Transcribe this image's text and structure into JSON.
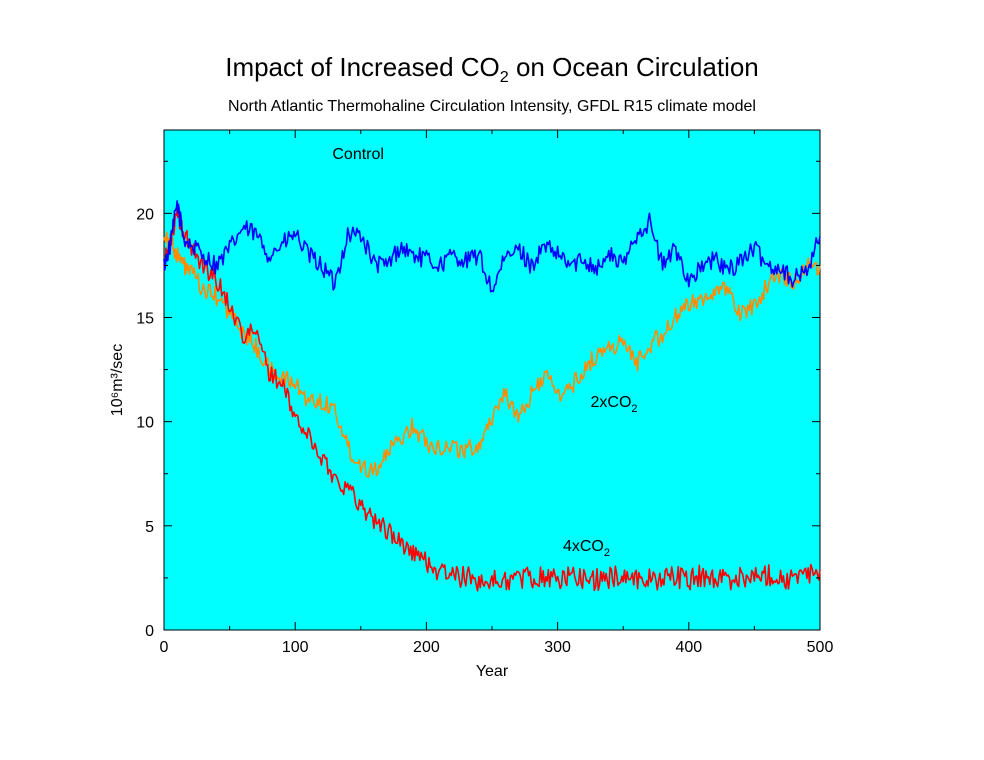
{
  "chart_data": {
    "type": "line",
    "title": {
      "main": "Impact of Increased CO",
      "sub": "2",
      "tail": " on Ocean Circulation"
    },
    "subtitle": "North Atlantic Thermohaline Circulation Intensity, GFDL R15 climate model",
    "xlabel": "Year",
    "ylabel": "10⁶m³/sec",
    "xlim": [
      0,
      500
    ],
    "ylim": [
      0,
      24
    ],
    "xticks": [
      0,
      100,
      200,
      300,
      400,
      500
    ],
    "yticks": [
      0,
      5,
      10,
      15,
      20
    ],
    "background": "#00ffff",
    "grid": false,
    "legend": "none (series labeled directly on plot)",
    "series": [
      {
        "name": "Control",
        "label_parts": [
          "Control",
          ""
        ],
        "color": "#0000ff",
        "x": [
          0,
          5,
          10,
          15,
          20,
          30,
          40,
          50,
          60,
          70,
          80,
          90,
          100,
          110,
          120,
          130,
          140,
          150,
          160,
          170,
          180,
          190,
          200,
          210,
          220,
          230,
          240,
          250,
          260,
          270,
          280,
          290,
          300,
          310,
          320,
          330,
          340,
          350,
          360,
          370,
          380,
          390,
          400,
          410,
          420,
          430,
          440,
          450,
          460,
          470,
          480,
          490,
          500
        ],
        "y": [
          17.5,
          18.5,
          20.5,
          18.8,
          18.5,
          18.0,
          17.5,
          18.3,
          19.3,
          19.0,
          18.0,
          18.5,
          19.0,
          18.0,
          17.5,
          16.6,
          19.0,
          19.0,
          17.6,
          17.5,
          18.4,
          18.0,
          17.8,
          17.5,
          18.0,
          17.7,
          18.0,
          16.3,
          17.8,
          18.3,
          17.5,
          18.4,
          18.0,
          17.5,
          17.8,
          17.4,
          18.0,
          17.5,
          19.0,
          19.6,
          17.5,
          18.3,
          16.8,
          17.4,
          17.8,
          17.2,
          17.8,
          18.3,
          17.5,
          17.4,
          16.8,
          17.3,
          18.9
        ]
      },
      {
        "name": "2xCO2",
        "label_parts": [
          "2xCO",
          "2"
        ],
        "color": "#ff8c00",
        "x": [
          0,
          5,
          10,
          15,
          20,
          30,
          40,
          50,
          60,
          70,
          80,
          90,
          100,
          110,
          120,
          130,
          140,
          150,
          160,
          170,
          180,
          190,
          200,
          210,
          220,
          230,
          240,
          250,
          260,
          270,
          280,
          290,
          300,
          310,
          320,
          330,
          340,
          350,
          360,
          370,
          380,
          390,
          400,
          410,
          420,
          430,
          440,
          450,
          460,
          470,
          480,
          490,
          500
        ],
        "y": [
          19.0,
          18.7,
          18.0,
          17.5,
          17.2,
          16.3,
          16.0,
          15.2,
          14.3,
          13.6,
          12.5,
          12.1,
          11.8,
          11.0,
          11.0,
          10.6,
          8.8,
          7.9,
          7.7,
          8.4,
          9.2,
          9.8,
          9.0,
          8.8,
          8.8,
          8.6,
          8.9,
          10.2,
          11.5,
          10.0,
          11.3,
          12.3,
          11.3,
          11.6,
          12.5,
          13.2,
          13.6,
          13.8,
          12.8,
          13.7,
          14.2,
          15.0,
          15.6,
          16.0,
          16.2,
          16.3,
          15.1,
          15.6,
          16.6,
          17.0,
          16.8,
          17.4,
          17.5
        ]
      },
      {
        "name": "4xCO2",
        "label_parts": [
          "4xCO",
          "2"
        ],
        "color": "#ff0000",
        "x": [
          0,
          5,
          10,
          15,
          20,
          30,
          40,
          50,
          60,
          70,
          80,
          90,
          100,
          110,
          120,
          130,
          140,
          150,
          160,
          170,
          180,
          190,
          200,
          210,
          220,
          230,
          240,
          250,
          260,
          270,
          280,
          290,
          300,
          310,
          320,
          330,
          340,
          350,
          360,
          370,
          380,
          390,
          400,
          410,
          420,
          430,
          440,
          450,
          460,
          470,
          480,
          490,
          500
        ],
        "y": [
          17.5,
          18.8,
          20.0,
          19.0,
          18.5,
          17.5,
          16.8,
          15.6,
          14.2,
          14.3,
          12.4,
          11.8,
          10.2,
          9.3,
          8.3,
          7.3,
          6.8,
          6.0,
          5.3,
          4.8,
          4.2,
          3.7,
          3.3,
          2.8,
          2.6,
          2.5,
          2.4,
          2.3,
          2.4,
          2.5,
          2.5,
          2.6,
          2.4,
          2.6,
          2.5,
          2.4,
          2.5,
          2.6,
          2.5,
          2.4,
          2.5,
          2.6,
          2.4,
          2.6,
          2.5,
          2.4,
          2.6,
          2.5,
          2.7,
          2.5,
          2.4,
          2.6,
          2.9
        ]
      }
    ]
  }
}
